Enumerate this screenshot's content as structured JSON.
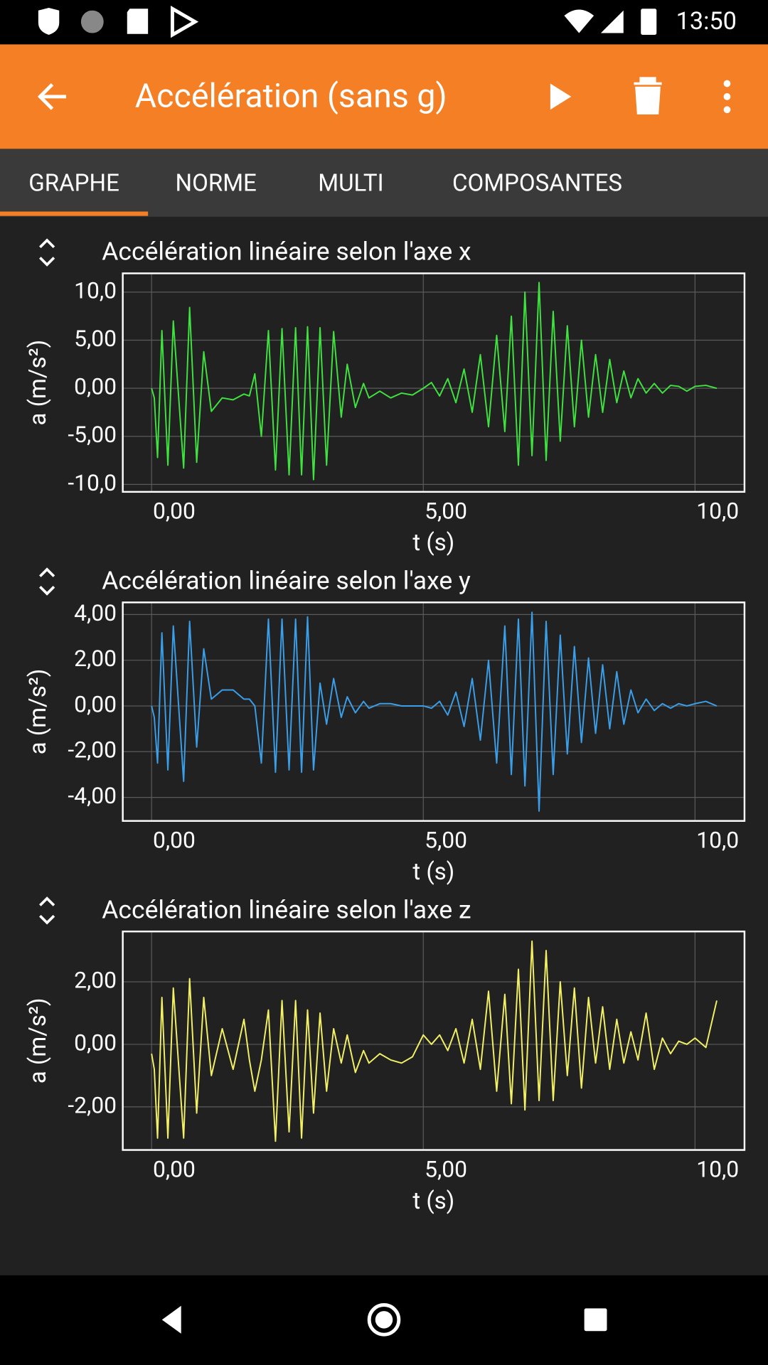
{
  "status_bar": {
    "time": "13:50"
  },
  "toolbar": {
    "title": "Accélération (sans g)"
  },
  "tabs": [
    "GRAPHE",
    "NORME",
    "MULTI",
    "COMPOSANTES"
  ],
  "chart_data": [
    {
      "type": "line",
      "title": "Accélération linéaire selon l'axe x",
      "xlabel": "t (s)",
      "ylabel": "a (m/s²)",
      "color": "#3fe23f",
      "grid": true,
      "xlim": [
        -0.53,
        10.91
      ],
      "ylim": [
        -10.77,
        11.95
      ],
      "xticks": [
        {
          "value": 0,
          "label": "0,00"
        },
        {
          "value": 5,
          "label": "5,00"
        },
        {
          "value": 10,
          "label": "10,0"
        }
      ],
      "yticks": [
        {
          "value": -10,
          "label": "-10,0"
        },
        {
          "value": -5,
          "label": "-5,00"
        },
        {
          "value": 0,
          "label": "0,00"
        },
        {
          "value": 5,
          "label": "5,00"
        },
        {
          "value": 10,
          "label": "10,0"
        }
      ],
      "x": [
        0,
        0.05,
        0.11,
        0.19,
        0.3,
        0.4,
        0.59,
        0.7,
        0.83,
        0.96,
        1.1,
        1.3,
        1.5,
        1.7,
        1.8,
        1.9,
        2.02,
        2.15,
        2.28,
        2.4,
        2.53,
        2.65,
        2.76,
        2.87,
        2.98,
        3.1,
        3.22,
        3.35,
        3.49,
        3.6,
        3.75,
        3.9,
        4.0,
        4.2,
        4.4,
        4.6,
        4.8,
        5.0,
        5.15,
        5.3,
        5.45,
        5.6,
        5.75,
        5.9,
        6.05,
        6.2,
        6.35,
        6.5,
        6.62,
        6.75,
        6.87,
        7.0,
        7.13,
        7.26,
        7.39,
        7.52,
        7.65,
        7.78,
        7.91,
        8.04,
        8.17,
        8.3,
        8.43,
        8.56,
        8.69,
        8.82,
        8.95,
        9.1,
        9.25,
        9.4,
        9.55,
        9.7,
        9.85,
        10.0,
        10.2,
        10.4
      ],
      "values": [
        0,
        -1,
        -7.2,
        6,
        -8,
        7,
        -8.3,
        8.4,
        -7.7,
        3.8,
        -2.4,
        -1,
        -1.2,
        -0.6,
        -0.8,
        1.5,
        -5,
        6,
        -8.5,
        6.2,
        -9,
        6.3,
        -9,
        6.4,
        -9.5,
        6.3,
        -8,
        5.9,
        -3,
        2.5,
        -2,
        0.5,
        -1,
        -0.3,
        -1,
        -0.5,
        -0.7,
        0,
        0.6,
        -0.8,
        1,
        -1.5,
        2,
        -2.5,
        3.5,
        -4,
        5.5,
        -4.5,
        7.5,
        -8,
        10,
        -7,
        11,
        -7.5,
        8,
        -5.5,
        6.5,
        -4,
        5,
        -3,
        3.5,
        -2.5,
        3,
        -1.5,
        1.8,
        -1,
        1,
        -0.5,
        0.5,
        -0.5,
        0.3,
        0.2,
        -0.3,
        0.2,
        0.3,
        0
      ]
    },
    {
      "type": "line",
      "title": "Accélération linéaire selon l'axe y",
      "xlabel": "t (s)",
      "ylabel": "a (m/s²)",
      "color": "#3a9ee8",
      "grid": true,
      "xlim": [
        -0.53,
        10.91
      ],
      "ylim": [
        -5.03,
        4.53
      ],
      "xticks": [
        {
          "value": 0,
          "label": "0,00"
        },
        {
          "value": 5,
          "label": "5,00"
        },
        {
          "value": 10,
          "label": "10,0"
        }
      ],
      "yticks": [
        {
          "value": -4,
          "label": "-4,00"
        },
        {
          "value": -2,
          "label": "-2,00"
        },
        {
          "value": 0,
          "label": "0,00"
        },
        {
          "value": 2,
          "label": "2,00"
        },
        {
          "value": 4,
          "label": "4,00"
        }
      ],
      "x": [
        0,
        0.05,
        0.11,
        0.19,
        0.3,
        0.4,
        0.59,
        0.7,
        0.83,
        0.96,
        1.1,
        1.3,
        1.5,
        1.7,
        1.8,
        1.9,
        2.02,
        2.15,
        2.28,
        2.4,
        2.53,
        2.65,
        2.76,
        2.87,
        2.98,
        3.1,
        3.22,
        3.35,
        3.49,
        3.6,
        3.75,
        3.9,
        4.0,
        4.2,
        4.4,
        4.6,
        4.8,
        5.0,
        5.15,
        5.3,
        5.45,
        5.6,
        5.75,
        5.9,
        6.05,
        6.2,
        6.35,
        6.5,
        6.62,
        6.75,
        6.87,
        7.0,
        7.13,
        7.26,
        7.39,
        7.52,
        7.65,
        7.78,
        7.91,
        8.04,
        8.17,
        8.3,
        8.43,
        8.56,
        8.69,
        8.82,
        8.95,
        9.1,
        9.25,
        9.4,
        9.55,
        9.7,
        9.85,
        10.0,
        10.2,
        10.4
      ],
      "values": [
        0,
        -0.5,
        -2.5,
        3.2,
        -2.8,
        3.5,
        -3.3,
        3.7,
        -1.8,
        2.5,
        0.3,
        0.7,
        0.7,
        0.3,
        0.3,
        0,
        -2.5,
        3.8,
        -2.9,
        3.8,
        -2.8,
        3.8,
        -2.9,
        3.9,
        -2.8,
        1.0,
        -0.8,
        1.2,
        -0.5,
        0.4,
        -0.3,
        0.2,
        -0.1,
        0.1,
        0.1,
        0,
        0,
        0,
        -0.1,
        0.2,
        -0.4,
        0.6,
        -0.9,
        1.2,
        -1.5,
        2,
        -2.5,
        3.5,
        -3,
        3.8,
        -3.5,
        4.1,
        -4.6,
        3.7,
        -3,
        3.1,
        -2.1,
        2.6,
        -1.6,
        2.1,
        -1.2,
        1.8,
        -1,
        1.5,
        -0.8,
        0.7,
        -0.3,
        0.3,
        -0.2,
        0.1,
        -0.1,
        0.1,
        0,
        0.1,
        0.2,
        0
      ]
    },
    {
      "type": "line",
      "title": "Accélération linéaire selon l'axe z",
      "xlabel": "t (s)",
      "ylabel": "a (m/s²)",
      "color": "#f2f065",
      "grid": true,
      "xlim": [
        -0.53,
        10.91
      ],
      "ylim": [
        -3.38,
        3.61
      ],
      "xticks": [
        {
          "value": 0,
          "label": "0,00"
        },
        {
          "value": 5,
          "label": "5,00"
        },
        {
          "value": 10,
          "label": "10,0"
        }
      ],
      "yticks": [
        {
          "value": -2,
          "label": "-2,00"
        },
        {
          "value": 0,
          "label": "0,00"
        },
        {
          "value": 2,
          "label": "2,00"
        }
      ],
      "x": [
        0,
        0.05,
        0.11,
        0.19,
        0.3,
        0.4,
        0.59,
        0.7,
        0.83,
        0.96,
        1.1,
        1.3,
        1.5,
        1.7,
        1.8,
        1.9,
        2.02,
        2.15,
        2.28,
        2.4,
        2.53,
        2.65,
        2.76,
        2.87,
        2.98,
        3.1,
        3.22,
        3.35,
        3.49,
        3.6,
        3.75,
        3.9,
        4.0,
        4.2,
        4.4,
        4.6,
        4.8,
        5.0,
        5.15,
        5.3,
        5.45,
        5.6,
        5.75,
        5.9,
        6.05,
        6.2,
        6.35,
        6.5,
        6.62,
        6.75,
        6.87,
        7.0,
        7.13,
        7.26,
        7.39,
        7.52,
        7.65,
        7.78,
        7.91,
        8.04,
        8.17,
        8.3,
        8.43,
        8.56,
        8.69,
        8.82,
        8.95,
        9.1,
        9.25,
        9.4,
        9.55,
        9.7,
        9.85,
        10.0,
        10.2,
        10.4
      ],
      "values": [
        -0.3,
        -0.8,
        -3,
        1.5,
        -3,
        1.8,
        -3,
        2.1,
        -2.2,
        1.5,
        -1,
        0.5,
        -0.8,
        0.8,
        -0.5,
        -1.5,
        -0.5,
        1.1,
        -3.1,
        1.4,
        -2.8,
        1.4,
        -3,
        1.1,
        -2.2,
        1,
        -1.5,
        0.5,
        -0.6,
        0.3,
        -0.9,
        -0.2,
        -0.6,
        -0.3,
        -0.5,
        -0.6,
        -0.4,
        0.3,
        0,
        0.3,
        -0.2,
        0.5,
        -0.6,
        0.8,
        -0.8,
        1.7,
        -1.5,
        1.6,
        -1.9,
        2.4,
        -2.1,
        3.3,
        -1.8,
        3,
        -1.8,
        2,
        -1,
        1.8,
        -1.4,
        1.5,
        -0.6,
        1.2,
        -0.8,
        0.8,
        -0.6,
        0.4,
        -0.5,
        1,
        -0.8,
        0.2,
        -0.3,
        0.1,
        0,
        0.2,
        -0.1,
        1.4
      ]
    }
  ]
}
